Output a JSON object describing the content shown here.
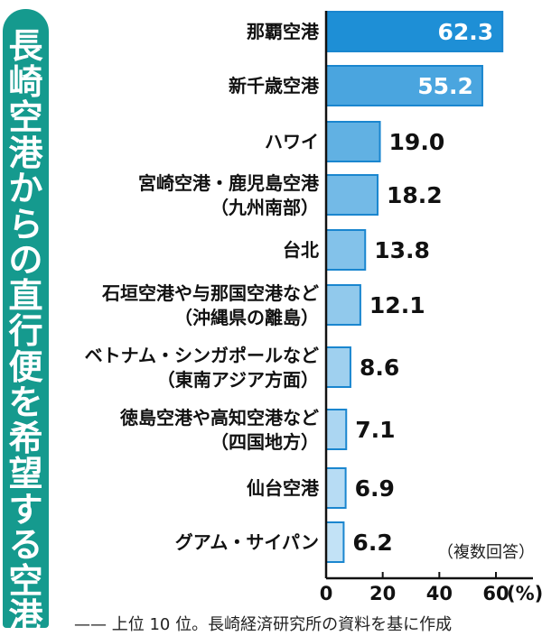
{
  "title": "長崎空港からの直行便を希望する空港",
  "note": "（複数回答）",
  "footer": "—— 上位 10 位。長崎経済研究所の資料を基に作成",
  "colors": {
    "banner": "#159a8e",
    "bar_dark": "#1e8fd6",
    "bar_light": "#c2e2f6",
    "bar_border": "#1a86cf"
  },
  "chart_data": {
    "type": "bar",
    "orientation": "horizontal",
    "categories": [
      [
        "那覇空港"
      ],
      [
        "新千歳空港"
      ],
      [
        "ハワイ"
      ],
      [
        "宮崎空港・鹿児島空港",
        "（九州南部）"
      ],
      [
        "台北"
      ],
      [
        "石垣空港や与那国空港など",
        "（沖縄県の離島）"
      ],
      [
        "ベトナム・シンガポールなど",
        "（東南アジア方面）"
      ],
      [
        "徳島空港や高知空港など",
        "（四国地方）"
      ],
      [
        "仙台空港"
      ],
      [
        "グアム・サイパン"
      ]
    ],
    "values": [
      62.3,
      55.2,
      19.0,
      18.2,
      13.8,
      12.1,
      8.6,
      7.1,
      6.9,
      6.2
    ],
    "value_labels": [
      "62.3",
      "55.2",
      "19.0",
      "18.2",
      "13.8",
      "12.1",
      "8.6",
      "7.1",
      "6.9",
      "6.2"
    ],
    "xlim": [
      0,
      60
    ],
    "xticks": [
      "0",
      "20",
      "40",
      "60"
    ],
    "xunit": "(%)",
    "grid": false
  }
}
